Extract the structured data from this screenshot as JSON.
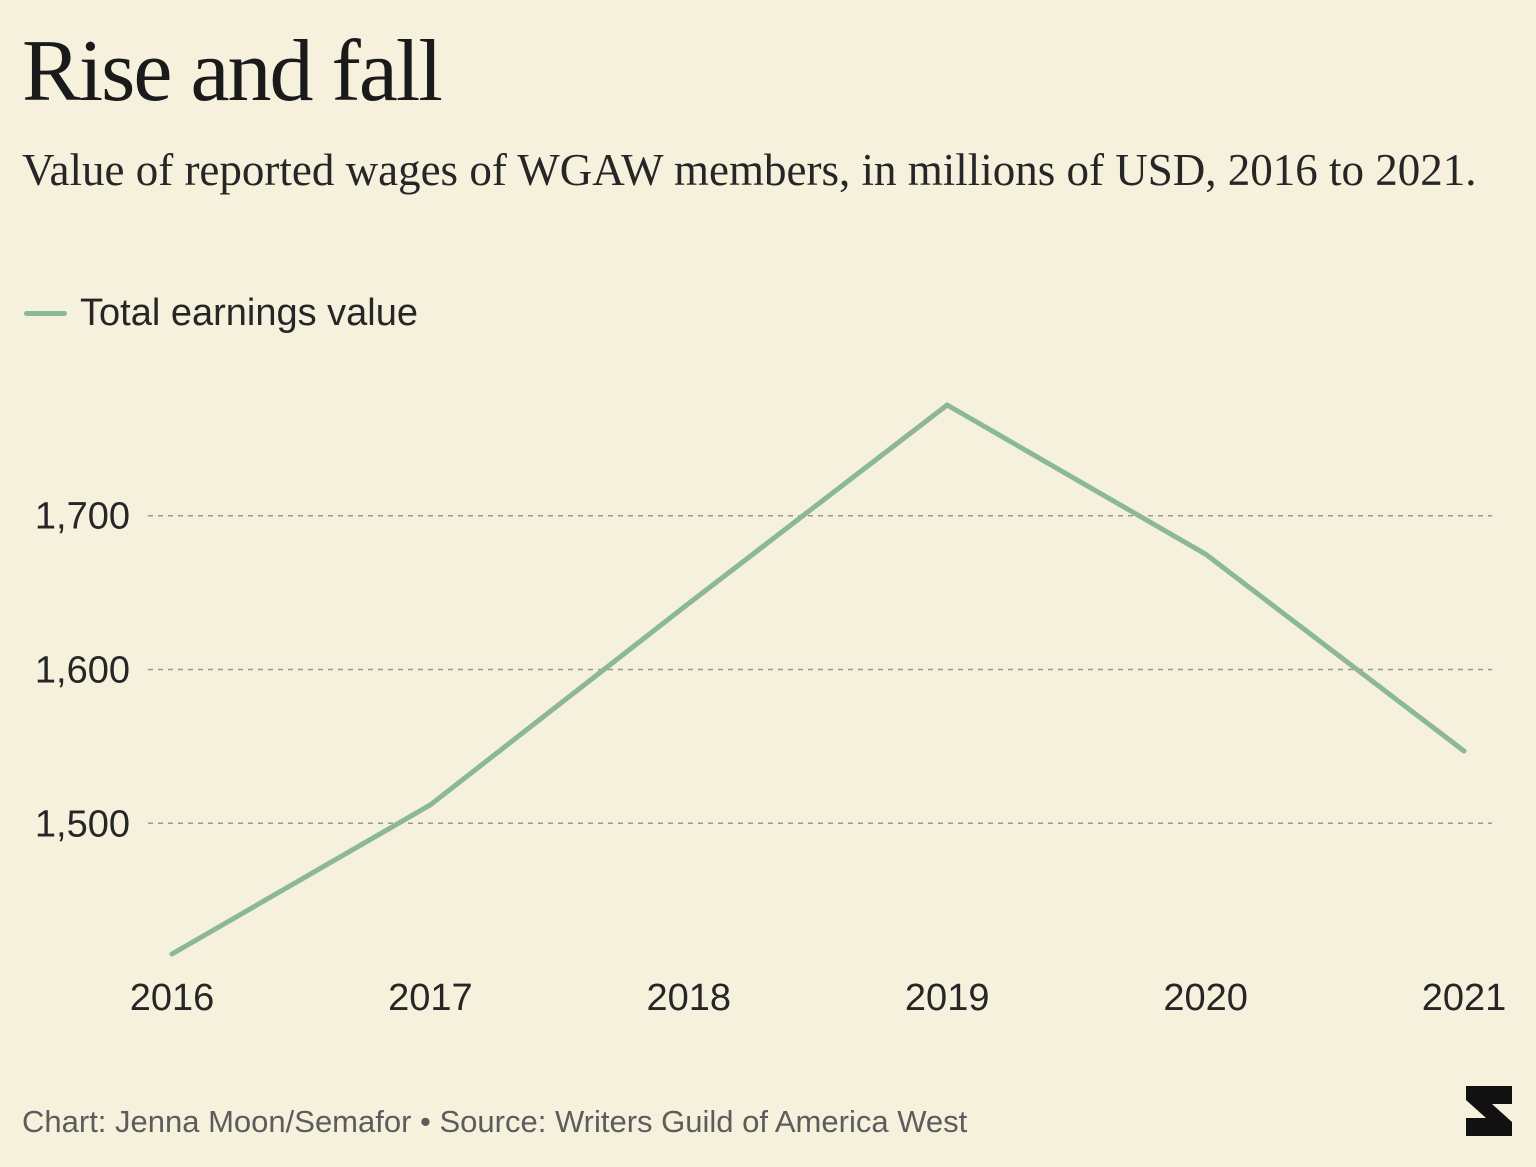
{
  "header": {
    "title": "Rise and fall",
    "subtitle": "Value of reported wages of WGAW members, in millions of USD, 2016 to 2021."
  },
  "legend": {
    "label": "Total earnings value"
  },
  "footer": {
    "credit": "Chart: Jenna Moon/Semafor • Source: Writers Guild of America West"
  },
  "logo": {
    "alt": "Semafor logo"
  },
  "colors": {
    "background": "#f6f1dd",
    "line": "#8cb89a",
    "grid": "#9a9a92"
  },
  "chart_data": {
    "type": "line",
    "title": "Rise and fall",
    "subtitle": "Value of reported wages of WGAW members, in millions of USD, 2016 to 2021.",
    "x": [
      "2016",
      "2017",
      "2018",
      "2019",
      "2020",
      "2021"
    ],
    "series": [
      {
        "name": "Total earnings value",
        "values": [
          1415,
          1512,
          1643,
          1772,
          1675,
          1547
        ]
      }
    ],
    "y_ticks": [
      1500,
      1600,
      1700
    ],
    "y_tick_labels": [
      "1,500",
      "1,600",
      "1,700"
    ],
    "ylim": [
      1415,
      1772
    ],
    "grid": "horizontal dashed",
    "legend_position": "top-left",
    "xlabel": "",
    "ylabel": ""
  }
}
